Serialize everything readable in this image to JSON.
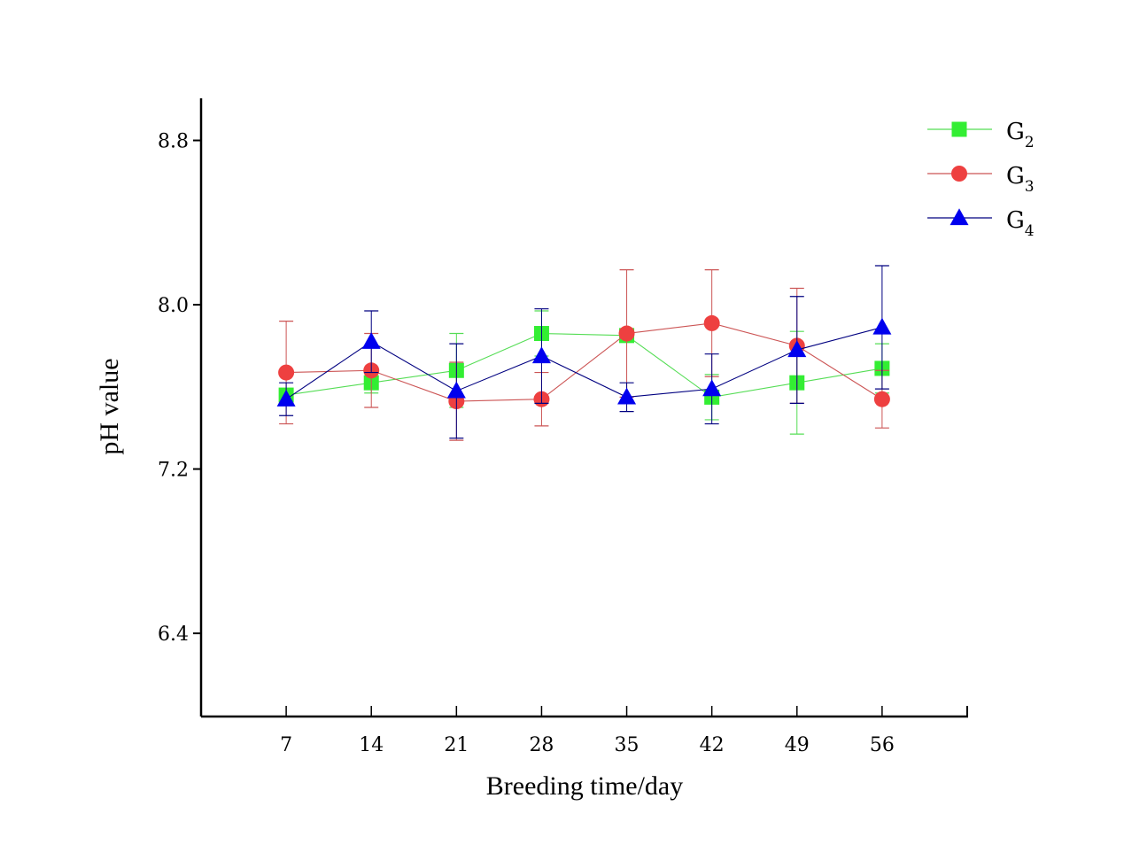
{
  "chart_data": {
    "type": "line",
    "title": "",
    "xlabel": "Breeding time/day",
    "ylabel": "pH value",
    "x": [
      7,
      14,
      21,
      28,
      35,
      42,
      49,
      56
    ],
    "x_tick_labels": [
      "7",
      "14",
      "21",
      "28",
      "35",
      "42",
      "49",
      "56"
    ],
    "y_tick_labels": [
      "6.4",
      "7.2",
      "8.0",
      "8.8"
    ],
    "y_ticks": [
      6.4,
      7.2,
      8.0,
      8.8
    ],
    "ylim": [
      5.995,
      9.005
    ],
    "xlim": [
      0,
      63
    ],
    "grid": false,
    "legend_position": "top-right",
    "error_bars": true,
    "series": [
      {
        "name": "G2",
        "base": "G",
        "sub": "2",
        "color": "#33ee33",
        "line_color": "#55dd55",
        "marker": "square",
        "values": [
          7.56,
          7.62,
          7.68,
          7.86,
          7.85,
          7.55,
          7.62,
          7.69
        ],
        "errors": [
          0.03,
          0.05,
          0.18,
          0.11,
          0.02,
          0.11,
          0.25,
          0.12
        ]
      },
      {
        "name": "G3",
        "base": "G",
        "sub": "3",
        "color": "#ee4040",
        "line_color": "#cc5555",
        "marker": "circle",
        "values": [
          7.67,
          7.68,
          7.53,
          7.54,
          7.86,
          7.91,
          7.8,
          7.54
        ],
        "errors": [
          0.25,
          0.18,
          0.19,
          0.13,
          0.31,
          0.26,
          0.28,
          0.14
        ]
      },
      {
        "name": "G4",
        "base": "G",
        "sub": "4",
        "color": "#0000ee",
        "line_color": "#000080",
        "marker": "triangle",
        "values": [
          7.54,
          7.82,
          7.58,
          7.75,
          7.55,
          7.59,
          7.78,
          7.89
        ],
        "errors": [
          0.08,
          0.15,
          0.23,
          0.23,
          0.07,
          0.17,
          0.26,
          0.3
        ]
      }
    ]
  }
}
